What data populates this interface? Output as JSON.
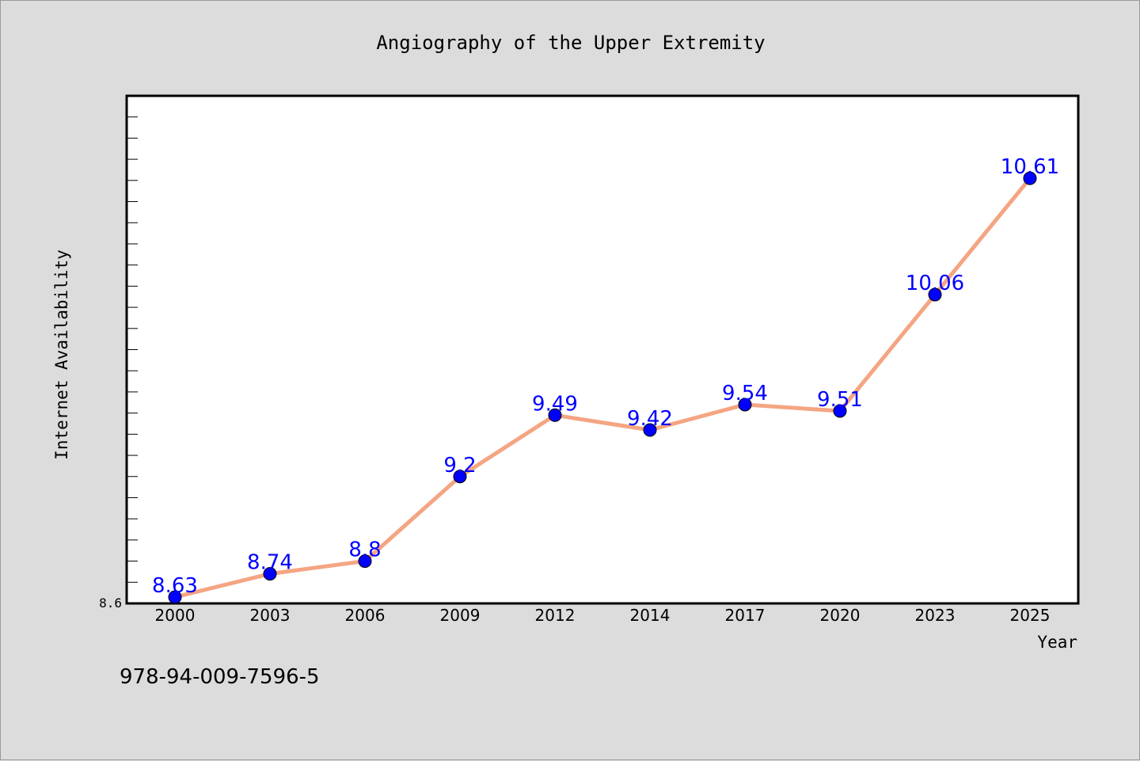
{
  "chart_data": {
    "type": "line",
    "title": "Angiography of the Upper Extremity",
    "xlabel": "Year",
    "ylabel": "Internet Availability",
    "categories": [
      "2000",
      "2003",
      "2006",
      "2009",
      "2012",
      "2014",
      "2017",
      "2020",
      "2023",
      "2025"
    ],
    "series": [
      {
        "values": [
          8.63,
          8.74,
          8.8,
          9.2,
          9.49,
          9.42,
          9.54,
          9.51,
          10.06,
          10.61
        ],
        "labels": [
          "8.63",
          "8.74",
          "8.8",
          "9.2",
          "9.49",
          "9.42",
          "9.54",
          "9.51",
          "10.06",
          "10.61"
        ]
      }
    ],
    "ylim": [
      8.6,
      11.0
    ],
    "y_tick_labels": [
      "8.6"
    ],
    "grid": false,
    "colors": {
      "line": "#f4a582",
      "marker": "#0000ff",
      "data_label": "#0000ff",
      "background": "#dcdcdc",
      "plot_area": "#ffffff"
    }
  },
  "footnote": "978-94-009-7596-5"
}
